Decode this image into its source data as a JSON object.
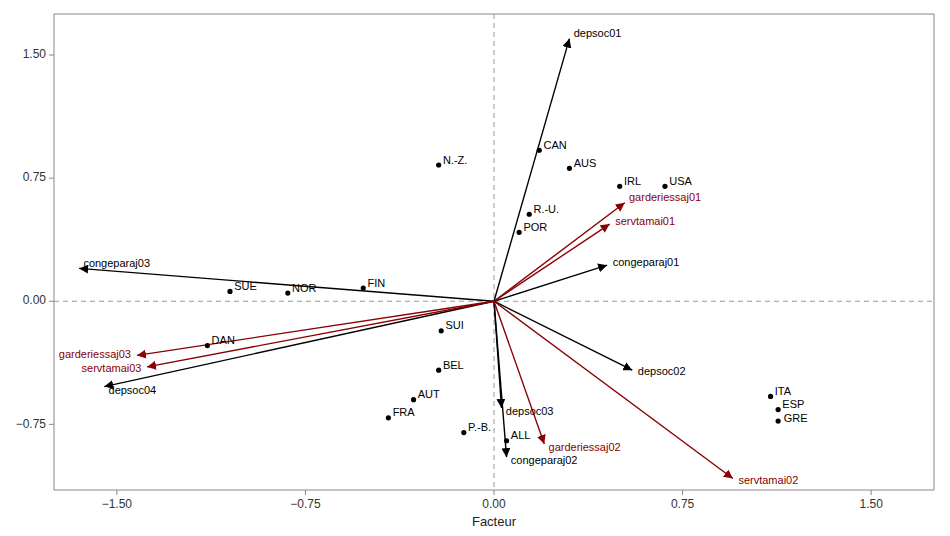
{
  "chart_data": {
    "type": "scatter",
    "xlabel": "Facteur",
    "xlim": [
      -1.75,
      1.75
    ],
    "ylim": [
      -1.15,
      1.75
    ],
    "xticks": [
      {
        "value": -1.5,
        "label": "−1.50"
      },
      {
        "value": -0.75,
        "label": "−0.75"
      },
      {
        "value": 0,
        "label": "0.00"
      },
      0.75,
      {
        "value": 1.5,
        "label": "1.50"
      }
    ],
    "yticks": [
      {
        "value": -0.75,
        "label": "−0.75"
      },
      {
        "value": 0,
        "label": "0.00"
      },
      0.75,
      {
        "value": 1.5,
        "label": "1.50"
      }
    ],
    "grid": false,
    "series": [
      {
        "type": "vector",
        "color": "black",
        "labels": [
          "depsoc01",
          "depsoc02",
          "depsoc03",
          "depsoc04",
          "congeparaj01",
          "congeparaj02",
          "congeparaj03"
        ],
        "x": [
          0.3,
          0.55,
          0.03,
          -1.55,
          0.45,
          0.05,
          -1.65
        ],
        "values": [
          1.6,
          -0.42,
          -0.65,
          -0.52,
          0.22,
          -0.95,
          0.2
        ]
      },
      {
        "type": "vector",
        "color": "darkred",
        "labels": [
          "garderiessaj01",
          "servtamai01",
          "garderiessaj02",
          "servtamai02",
          "garderiessaj03",
          "servtamai03"
        ],
        "x": [
          0.52,
          0.46,
          0.2,
          0.95,
          -1.42,
          -1.38
        ],
        "values": [
          0.6,
          0.47,
          -0.87,
          -1.08,
          -0.33,
          -0.4
        ]
      },
      {
        "type": "scatter",
        "color": "black",
        "labels": [
          "CAN",
          "AUS",
          "IRL",
          "USA",
          "R.-U.",
          "POR",
          "N.-Z.",
          "SUE",
          "NOR",
          "FIN",
          "DAN",
          "SUI",
          "BEL",
          "AUT",
          "FRA",
          "P.-B.",
          "ALL",
          "ITA",
          "ESP",
          "GRE"
        ],
        "x": [
          0.18,
          0.3,
          0.5,
          0.68,
          0.14,
          0.1,
          -0.22,
          -1.05,
          -0.82,
          -0.52,
          -1.14,
          -0.21,
          -0.22,
          -0.32,
          -0.42,
          -0.12,
          0.05,
          1.1,
          1.13,
          1.13
        ],
        "values": [
          0.92,
          0.81,
          0.7,
          0.7,
          0.53,
          0.42,
          0.83,
          0.06,
          0.05,
          0.08,
          -0.27,
          -0.18,
          -0.42,
          -0.6,
          -0.71,
          -0.8,
          -0.85,
          -0.58,
          -0.66,
          -0.73
        ]
      }
    ]
  }
}
